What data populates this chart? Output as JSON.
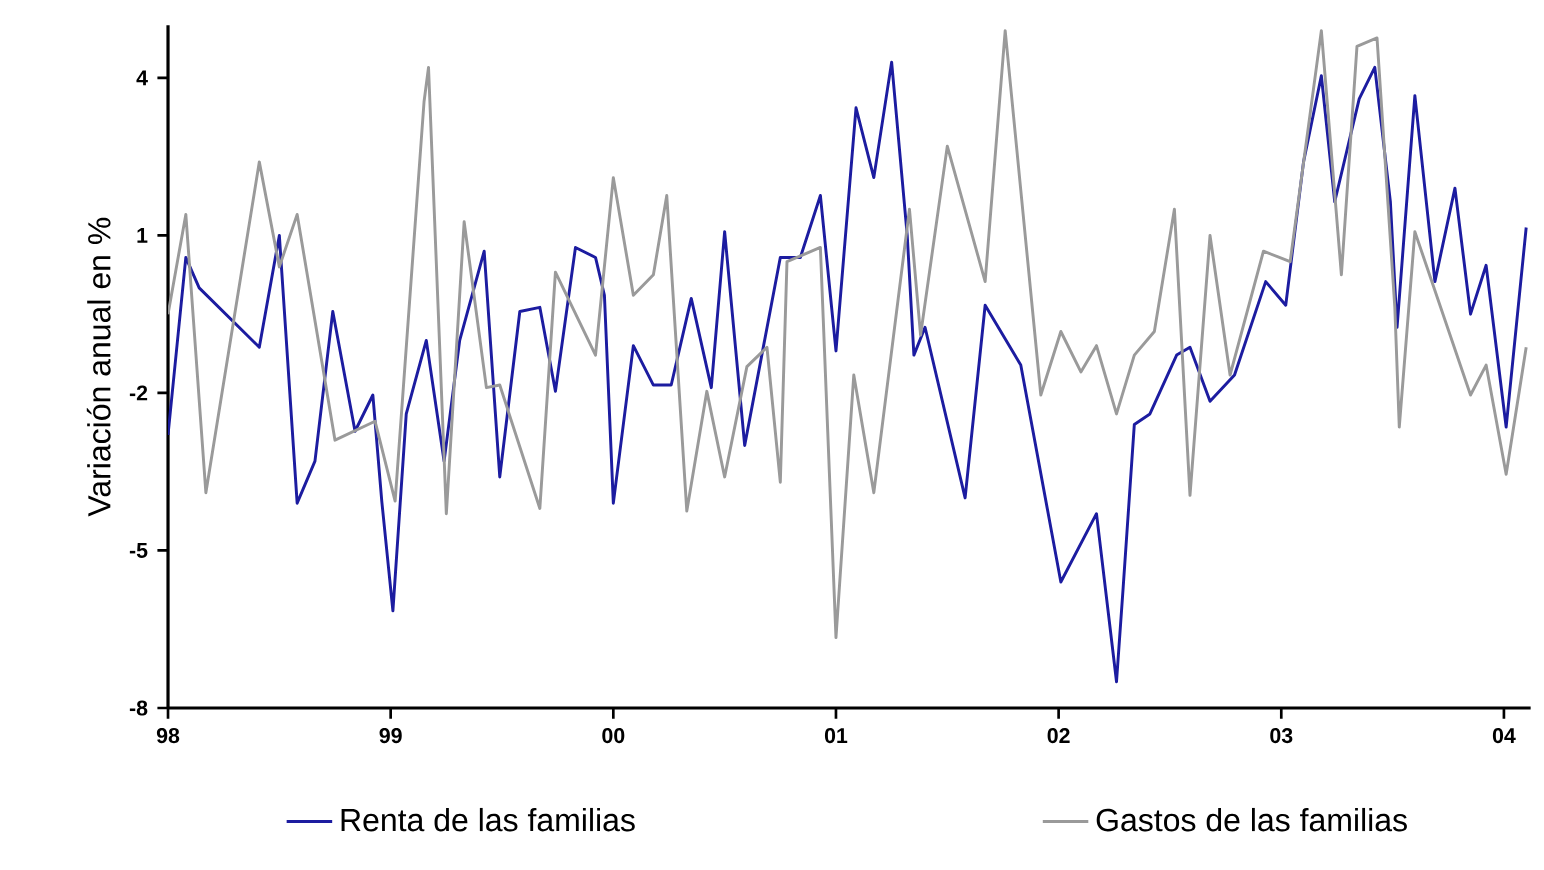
{
  "chart_data": {
    "type": "line",
    "ylabel": "Variación anual en %",
    "xlim": [
      1998,
      2004.12
    ],
    "ylim": [
      -8,
      5
    ],
    "xticks": [
      {
        "value": 1998,
        "label": "98"
      },
      {
        "value": 1999,
        "label": "99"
      },
      {
        "value": 2000,
        "label": "00"
      },
      {
        "value": 2001,
        "label": "01"
      },
      {
        "value": 2002,
        "label": "02"
      },
      {
        "value": 2003,
        "label": "03"
      },
      {
        "value": 2004,
        "label": "04"
      }
    ],
    "yticks": [
      -8,
      -5,
      -2,
      1,
      4
    ],
    "grid": false,
    "legend": "bottom",
    "marker": "none",
    "line_style": "solid",
    "series": [
      {
        "name": "Renta de las familias",
        "color": "#1c1ca0",
        "x": [
          1998.0,
          1998.08,
          1998.14,
          1998.41,
          1998.5,
          1998.58,
          1998.66,
          1998.74,
          1998.84,
          1998.92,
          1998.96,
          1999.01,
          1999.07,
          1999.16,
          1999.24,
          1999.31,
          1999.42,
          1999.49,
          1999.58,
          1999.67,
          1999.74,
          1999.83,
          1999.92,
          1999.96,
          2000.0,
          2000.09,
          2000.18,
          2000.26,
          2000.35,
          2000.44,
          2000.5,
          2000.59,
          2000.75,
          2000.84,
          2000.93,
          2001.0,
          2001.09,
          2001.17,
          2001.25,
          2001.32,
          2001.35,
          2001.4,
          2001.58,
          2001.67,
          2001.83,
          2002.01,
          2002.17,
          2002.26,
          2002.29,
          2002.34,
          2002.41,
          2002.53,
          2002.59,
          2002.68,
          2002.79,
          2002.93,
          2003.02,
          2003.1,
          2003.18,
          2003.24,
          2003.35,
          2003.42,
          2003.49,
          2003.52,
          2003.6,
          2003.69,
          2003.78,
          2003.85,
          2003.92,
          2004.01,
          2004.1
        ],
        "values": [
          -2.8,
          0.58,
          0.0,
          -1.13,
          1.0,
          -4.1,
          -3.3,
          -0.45,
          -2.73,
          -2.04,
          -4.06,
          -6.15,
          -2.4,
          -1.0,
          -3.3,
          -1.0,
          0.7,
          -3.6,
          -0.45,
          -0.37,
          -1.97,
          0.77,
          0.58,
          -0.14,
          -4.1,
          -1.1,
          -1.85,
          -1.85,
          -0.2,
          -1.9,
          1.07,
          -3.0,
          0.58,
          0.58,
          1.76,
          -1.2,
          3.43,
          2.1,
          4.3,
          1.0,
          -1.28,
          -0.75,
          -4.0,
          -0.33,
          -1.47,
          -5.6,
          -4.3,
          -7.5,
          -5.7,
          -2.6,
          -2.4,
          -1.28,
          -1.13,
          -2.16,
          -1.66,
          0.12,
          -0.33,
          2.4,
          4.04,
          1.64,
          3.6,
          4.2,
          1.64,
          -0.75,
          3.66,
          0.12,
          1.9,
          -0.5,
          0.43,
          -2.65,
          1.15
        ]
      },
      {
        "name": "Gastos de las familias",
        "color": "#9a9a9a",
        "x": [
          1998.0,
          1998.08,
          1998.17,
          1998.41,
          1998.5,
          1998.58,
          1998.75,
          1998.93,
          1999.02,
          1999.15,
          1999.17,
          1999.25,
          1999.33,
          1999.43,
          1999.49,
          1999.67,
          1999.74,
          1999.92,
          2000.0,
          2000.09,
          2000.18,
          2000.24,
          2000.33,
          2000.42,
          2000.5,
          2000.6,
          2000.69,
          2000.75,
          2000.78,
          2000.93,
          2001.0,
          2001.08,
          2001.17,
          2001.33,
          2001.38,
          2001.5,
          2001.67,
          2001.76,
          2001.92,
          2002.01,
          2002.1,
          2002.17,
          2002.26,
          2002.34,
          2002.43,
          2002.52,
          2002.59,
          2002.68,
          2002.77,
          2002.92,
          2003.04,
          2003.18,
          2003.27,
          2003.34,
          2003.43,
          2003.51,
          2003.53,
          2003.6,
          2003.85,
          2003.92,
          2004.01,
          2004.1
        ],
        "values": [
          -0.5,
          1.4,
          -3.9,
          2.4,
          0.4,
          1.4,
          -2.9,
          -2.54,
          -4.06,
          3.55,
          4.2,
          -4.3,
          1.26,
          -1.9,
          -1.85,
          -4.2,
          0.3,
          -1.28,
          2.1,
          -0.14,
          0.25,
          1.76,
          -4.25,
          -1.97,
          -3.6,
          -1.5,
          -1.13,
          -3.7,
          0.5,
          0.77,
          -6.66,
          -1.66,
          -3.9,
          1.5,
          -0.9,
          2.7,
          0.12,
          4.9,
          -2.04,
          -0.83,
          -1.6,
          -1.1,
          -2.4,
          -1.28,
          -0.83,
          1.5,
          -3.95,
          1.0,
          -1.66,
          0.7,
          0.5,
          4.9,
          0.25,
          4.6,
          4.76,
          -0.37,
          -2.65,
          1.07,
          -2.04,
          -1.47,
          -3.55,
          -1.13
        ]
      }
    ]
  }
}
